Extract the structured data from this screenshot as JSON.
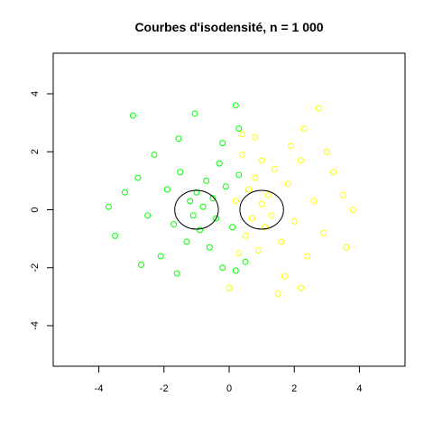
{
  "chart_data": {
    "type": "scatter",
    "title": "Courbes d'isodensité, n = 1 000",
    "xlabel": "",
    "ylabel": "",
    "xlim": [
      -5.4,
      5.4
    ],
    "ylim": [
      -5.4,
      5.4
    ],
    "xticks": [
      -4,
      -2,
      0,
      2,
      4
    ],
    "yticks": [
      -4,
      -2,
      0,
      2,
      4
    ],
    "xtick_labels": [
      "-4",
      "-2",
      "0",
      "2",
      "4"
    ],
    "ytick_labels": [
      "-4",
      "-2",
      "0",
      "2",
      "4"
    ],
    "grid": false,
    "legend": "none",
    "series": [
      {
        "color": "#00ff00",
        "center": [
          -1,
          0
        ],
        "sd": 1,
        "n": 500,
        "points": [
          [
            -2.95,
            3.25
          ],
          [
            -1.05,
            3.32
          ],
          [
            0.2,
            3.6
          ],
          [
            -1.55,
            2.45
          ],
          [
            0.3,
            2.8
          ],
          [
            -3.7,
            0.1
          ],
          [
            -3.5,
            -0.9
          ],
          [
            -3.2,
            0.6
          ],
          [
            -2.8,
            1.1
          ],
          [
            -2.5,
            -0.2
          ],
          [
            -2.3,
            1.9
          ],
          [
            -2.1,
            -1.6
          ],
          [
            -1.9,
            0.7
          ],
          [
            -1.7,
            -0.5
          ],
          [
            -1.5,
            1.3
          ],
          [
            -1.3,
            -1.1
          ],
          [
            -1.2,
            0.3
          ],
          [
            -1.1,
            -0.2
          ],
          [
            -1.0,
            0.6
          ],
          [
            -0.9,
            -0.7
          ],
          [
            -0.8,
            0.1
          ],
          [
            -0.7,
            1.0
          ],
          [
            -0.6,
            -1.3
          ],
          [
            -0.5,
            0.4
          ],
          [
            -0.4,
            -0.3
          ],
          [
            -0.3,
            1.6
          ],
          [
            -0.2,
            -2.0
          ],
          [
            -0.1,
            0.8
          ],
          [
            0.1,
            -0.6
          ],
          [
            0.3,
            1.2
          ],
          [
            0.5,
            -1.8
          ],
          [
            -2.7,
            -1.9
          ],
          [
            -1.6,
            -2.2
          ],
          [
            -0.2,
            2.3
          ],
          [
            0.2,
            -2.1
          ]
        ]
      },
      {
        "color": "#ffff00",
        "center": [
          1,
          0
        ],
        "sd": 1,
        "n": 500,
        "points": [
          [
            2.75,
            3.5
          ],
          [
            2.3,
            2.8
          ],
          [
            3.5,
            0.5
          ],
          [
            3.6,
            -1.3
          ],
          [
            3.2,
            1.3
          ],
          [
            2.9,
            -0.8
          ],
          [
            2.6,
            0.3
          ],
          [
            2.4,
            -1.6
          ],
          [
            2.2,
            1.7
          ],
          [
            2.0,
            -0.4
          ],
          [
            1.8,
            0.9
          ],
          [
            1.6,
            -1.1
          ],
          [
            1.4,
            1.4
          ],
          [
            1.3,
            -0.2
          ],
          [
            1.2,
            0.5
          ],
          [
            1.1,
            -0.6
          ],
          [
            1.0,
            0.2
          ],
          [
            0.9,
            -1.4
          ],
          [
            0.8,
            1.1
          ],
          [
            0.7,
            -0.3
          ],
          [
            0.6,
            0.7
          ],
          [
            0.5,
            -0.9
          ],
          [
            0.4,
            1.9
          ],
          [
            0.3,
            -1.5
          ],
          [
            0.2,
            0.3
          ],
          [
            0.0,
            -2.7
          ],
          [
            1.5,
            -2.9
          ],
          [
            1.9,
            2.2
          ],
          [
            0.8,
            2.5
          ],
          [
            2.2,
            -2.7
          ],
          [
            1.0,
            1.7
          ],
          [
            1.7,
            -2.3
          ],
          [
            3.0,
            2.0
          ],
          [
            3.8,
            0.0
          ],
          [
            0.4,
            2.6
          ]
        ]
      }
    ],
    "isodensity_contours": [
      {
        "center": [
          -1,
          0
        ],
        "radius": 0.67,
        "color": "#000000"
      },
      {
        "center": [
          1,
          0
        ],
        "radius": 0.67,
        "color": "#000000"
      }
    ]
  }
}
